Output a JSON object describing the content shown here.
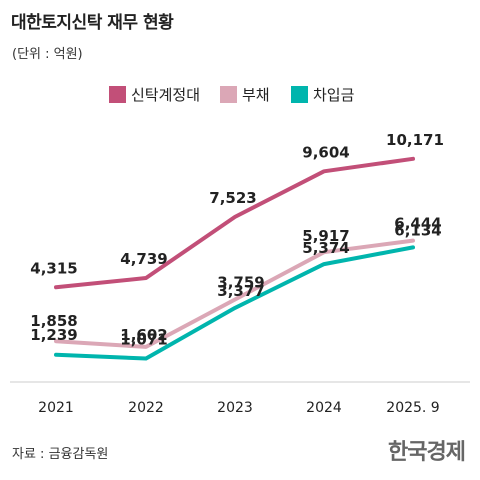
{
  "title": "대한토지신탁 재무 현황",
  "unit_note": "(단위 : 억원)",
  "source": "자료 : 금융감독원",
  "brand": "한국경제",
  "colors": {
    "axis": "#cccccc"
  },
  "chart_data": {
    "type": "line",
    "title": "대한토지신탁 재무 현황",
    "xlabel": "",
    "ylabel": "",
    "ylim": [
      0,
      11000
    ],
    "grid": false,
    "legend_position": "top-center",
    "categories": [
      "2021",
      "2022",
      "2023",
      "2024",
      "2025. 9"
    ],
    "series": [
      {
        "name": "신탁계정대",
        "color": "#c24f78",
        "values": [
          4315,
          4739,
          7523,
          9604,
          10171
        ],
        "labels": [
          "4,315",
          "4,739",
          "7,523",
          "9,604",
          "10,171"
        ]
      },
      {
        "name": "부채",
        "color": "#dba7b6",
        "values": [
          1858,
          1602,
          3759,
          5917,
          6444
        ],
        "labels": [
          "1,858",
          "1,602",
          "3,759",
          "5,917",
          "6,444"
        ]
      },
      {
        "name": "차입금",
        "color": "#00b5ad",
        "values": [
          1239,
          1071,
          3377,
          5374,
          6134
        ],
        "labels": [
          "1,239",
          "1,071",
          "3,377",
          "5,374",
          "6,134"
        ]
      }
    ]
  }
}
